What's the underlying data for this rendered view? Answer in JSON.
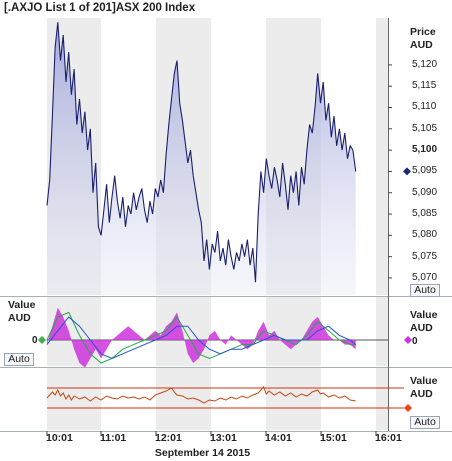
{
  "window": {
    "title": "[.AXJO List 1 of 201]ASX 200 Index"
  },
  "price_panel": {
    "axis_label_line1": "Price",
    "axis_label_line2": "AUD",
    "ticks": [
      "5,120",
      "5,115",
      "5,110",
      "5,105",
      "5,100",
      "5,095",
      "5,090",
      "5,085",
      "5,080",
      "5,075",
      "5,070"
    ],
    "current_tick": "5,100",
    "auto_label": "Auto",
    "marker_color": "#1a2a6c"
  },
  "oscillator_panel": {
    "left_label_line1": "Value",
    "left_label_line2": "AUD",
    "left_zero": "0",
    "right_label_line1": "Value",
    "right_label_line2": "AUD",
    "right_zero": "0",
    "auto_label": "Auto",
    "histogram_color": "#cc33dd",
    "line1_color": "#22aa44",
    "line2_color": "#2255cc"
  },
  "bottom_panel": {
    "label_line1": "Value",
    "label_line2": "AUD",
    "auto_label": "Auto",
    "line_color": "#cc4411",
    "band_color": "#cc3311",
    "marker_color": "#ee4411"
  },
  "x_axis": {
    "ticks": [
      "10:01",
      "11:01",
      "12:01",
      "13:01",
      "14:01",
      "15:01",
      "16:01"
    ],
    "date_label": "September 14 2015"
  },
  "chart_data": {
    "type": "line",
    "title": "[.AXJO List 1 of 201]ASX 200 Index",
    "xlabel": "September 14 2015",
    "ylabel": "Price AUD",
    "ylim": [
      5066,
      5131
    ],
    "x_range": [
      0,
      360
    ],
    "x_unit": "minutes after 10:01",
    "series": [
      {
        "name": "ASX 200 Index",
        "points": [
          [
            0,
            5087
          ],
          [
            3,
            5093
          ],
          [
            6,
            5108
          ],
          [
            9,
            5124
          ],
          [
            12,
            5130
          ],
          [
            15,
            5121
          ],
          [
            18,
            5127
          ],
          [
            21,
            5116
          ],
          [
            24,
            5123
          ],
          [
            27,
            5113
          ],
          [
            30,
            5119
          ],
          [
            33,
            5106
          ],
          [
            36,
            5112
          ],
          [
            39,
            5104
          ],
          [
            42,
            5109
          ],
          [
            45,
            5100
          ],
          [
            48,
            5105
          ],
          [
            51,
            5090
          ],
          [
            54,
            5097
          ],
          [
            57,
            5082
          ],
          [
            60,
            5080
          ],
          [
            63,
            5086
          ],
          [
            66,
            5092
          ],
          [
            69,
            5083
          ],
          [
            72,
            5089
          ],
          [
            75,
            5094
          ],
          [
            78,
            5088
          ],
          [
            81,
            5084
          ],
          [
            84,
            5089
          ],
          [
            87,
            5082
          ],
          [
            90,
            5087
          ],
          [
            93,
            5085
          ],
          [
            96,
            5090
          ],
          [
            99,
            5086
          ],
          [
            102,
            5089
          ],
          [
            105,
            5091
          ],
          [
            108,
            5086
          ],
          [
            111,
            5083
          ],
          [
            114,
            5088
          ],
          [
            117,
            5085
          ],
          [
            120,
            5091
          ],
          [
            123,
            5089
          ],
          [
            126,
            5093
          ],
          [
            129,
            5090
          ],
          [
            132,
            5099
          ],
          [
            135,
            5106
          ],
          [
            138,
            5112
          ],
          [
            141,
            5118
          ],
          [
            144,
            5121
          ],
          [
            147,
            5111
          ],
          [
            150,
            5107
          ],
          [
            153,
            5102
          ],
          [
            156,
            5097
          ],
          [
            159,
            5100
          ],
          [
            162,
            5094
          ],
          [
            165,
            5090
          ],
          [
            168,
            5086
          ],
          [
            171,
            5083
          ],
          [
            174,
            5074
          ],
          [
            177,
            5079
          ],
          [
            180,
            5072
          ],
          [
            183,
            5078
          ],
          [
            186,
            5076
          ],
          [
            189,
            5081
          ],
          [
            192,
            5074
          ],
          [
            195,
            5077
          ],
          [
            198,
            5073
          ],
          [
            201,
            5079
          ],
          [
            204,
            5075
          ],
          [
            207,
            5072
          ],
          [
            210,
            5076
          ],
          [
            213,
            5074
          ],
          [
            216,
            5078
          ],
          [
            219,
            5075
          ],
          [
            222,
            5079
          ],
          [
            225,
            5073
          ],
          [
            228,
            5077
          ],
          [
            231,
            5069
          ],
          [
            234,
            5085
          ],
          [
            237,
            5095
          ],
          [
            240,
            5090
          ],
          [
            243,
            5098
          ],
          [
            246,
            5094
          ],
          [
            249,
            5091
          ],
          [
            252,
            5096
          ],
          [
            255,
            5093
          ],
          [
            258,
            5089
          ],
          [
            261,
            5097
          ],
          [
            264,
            5092
          ],
          [
            267,
            5086
          ],
          [
            270,
            5094
          ],
          [
            273,
            5090
          ],
          [
            276,
            5095
          ],
          [
            279,
            5087
          ],
          [
            282,
            5096
          ],
          [
            285,
            5092
          ],
          [
            288,
            5100
          ],
          [
            291,
            5106
          ],
          [
            294,
            5104
          ],
          [
            297,
            5110
          ],
          [
            300,
            5118
          ],
          [
            303,
            5111
          ],
          [
            306,
            5116
          ],
          [
            309,
            5107
          ],
          [
            312,
            5111
          ],
          [
            315,
            5103
          ],
          [
            318,
            5108
          ],
          [
            321,
            5101
          ],
          [
            324,
            5105
          ],
          [
            327,
            5100
          ],
          [
            330,
            5104
          ],
          [
            333,
            5098
          ],
          [
            336,
            5101
          ],
          [
            339,
            5100
          ],
          [
            342,
            5095
          ]
        ]
      }
    ],
    "oscillator": {
      "histogram": [
        [
          0,
          -1
        ],
        [
          6,
          3
        ],
        [
          12,
          7
        ],
        [
          18,
          5
        ],
        [
          24,
          2
        ],
        [
          30,
          -2
        ],
        [
          36,
          -5
        ],
        [
          42,
          -6
        ],
        [
          48,
          -4
        ],
        [
          54,
          -2
        ],
        [
          60,
          -4
        ],
        [
          66,
          -2
        ],
        [
          72,
          0
        ],
        [
          78,
          1
        ],
        [
          84,
          2
        ],
        [
          90,
          3
        ],
        [
          96,
          2
        ],
        [
          102,
          1
        ],
        [
          108,
          0
        ],
        [
          114,
          1
        ],
        [
          120,
          2
        ],
        [
          126,
          1
        ],
        [
          132,
          3
        ],
        [
          138,
          4
        ],
        [
          144,
          6
        ],
        [
          150,
          2
        ],
        [
          156,
          -3
        ],
        [
          162,
          -5
        ],
        [
          168,
          -4
        ],
        [
          174,
          -2
        ],
        [
          180,
          1
        ],
        [
          186,
          2
        ],
        [
          192,
          0
        ],
        [
          198,
          -1
        ],
        [
          204,
          1
        ],
        [
          210,
          0
        ],
        [
          216,
          -1
        ],
        [
          222,
          -2
        ],
        [
          228,
          -1
        ],
        [
          234,
          2
        ],
        [
          240,
          4
        ],
        [
          246,
          1
        ],
        [
          252,
          2
        ],
        [
          258,
          0
        ],
        [
          264,
          -1
        ],
        [
          270,
          -2
        ],
        [
          276,
          -1
        ],
        [
          282,
          0
        ],
        [
          288,
          2
        ],
        [
          294,
          4
        ],
        [
          300,
          5
        ],
        [
          306,
          3
        ],
        [
          312,
          1
        ],
        [
          318,
          0
        ],
        [
          324,
          0
        ],
        [
          330,
          -1
        ],
        [
          336,
          -1
        ],
        [
          342,
          -2
        ]
      ],
      "line1": [
        [
          0,
          0
        ],
        [
          12,
          5
        ],
        [
          24,
          6
        ],
        [
          36,
          1
        ],
        [
          48,
          -3
        ],
        [
          60,
          -5
        ],
        [
          72,
          -4
        ],
        [
          84,
          -2
        ],
        [
          96,
          -1
        ],
        [
          108,
          0
        ],
        [
          120,
          1
        ],
        [
          132,
          2
        ],
        [
          144,
          5
        ],
        [
          156,
          1
        ],
        [
          168,
          -3
        ],
        [
          180,
          -4
        ],
        [
          192,
          -3
        ],
        [
          204,
          -2
        ],
        [
          216,
          -1
        ],
        [
          228,
          -1
        ],
        [
          240,
          2
        ],
        [
          252,
          1
        ],
        [
          264,
          0
        ],
        [
          276,
          -1
        ],
        [
          288,
          1
        ],
        [
          300,
          4
        ],
        [
          312,
          2
        ],
        [
          324,
          0
        ],
        [
          336,
          -1
        ],
        [
          342,
          -1
        ]
      ],
      "line2": [
        [
          0,
          -1
        ],
        [
          12,
          2
        ],
        [
          24,
          5
        ],
        [
          36,
          3
        ],
        [
          48,
          0
        ],
        [
          60,
          -3
        ],
        [
          72,
          -4
        ],
        [
          84,
          -3
        ],
        [
          96,
          -2
        ],
        [
          108,
          -1
        ],
        [
          120,
          0
        ],
        [
          132,
          1
        ],
        [
          144,
          3
        ],
        [
          156,
          3
        ],
        [
          168,
          0
        ],
        [
          180,
          -2
        ],
        [
          192,
          -3
        ],
        [
          204,
          -2
        ],
        [
          216,
          -2
        ],
        [
          228,
          -1
        ],
        [
          240,
          0
        ],
        [
          252,
          1
        ],
        [
          264,
          0
        ],
        [
          276,
          0
        ],
        [
          288,
          0
        ],
        [
          300,
          2
        ],
        [
          312,
          3
        ],
        [
          324,
          1
        ],
        [
          336,
          0
        ],
        [
          342,
          -1
        ]
      ]
    },
    "bottom_indicator": {
      "band_upper": 1,
      "band_lower": -1,
      "points": [
        [
          0,
          0
        ],
        [
          6,
          0.6
        ],
        [
          9,
          0.3
        ],
        [
          12,
          0.8
        ],
        [
          15,
          0.2
        ],
        [
          18,
          0.5
        ],
        [
          21,
          -0.1
        ],
        [
          24,
          0.3
        ],
        [
          27,
          -0.2
        ],
        [
          30,
          0.2
        ],
        [
          36,
          -0.1
        ],
        [
          42,
          0.1
        ],
        [
          48,
          -0.3
        ],
        [
          54,
          0.1
        ],
        [
          60,
          -0.2
        ],
        [
          66,
          0.2
        ],
        [
          72,
          0.0
        ],
        [
          78,
          -0.1
        ],
        [
          84,
          0.2
        ],
        [
          90,
          0.0
        ],
        [
          96,
          0.1
        ],
        [
          102,
          -0.1
        ],
        [
          108,
          0.1
        ],
        [
          114,
          -0.2
        ],
        [
          120,
          0.3
        ],
        [
          126,
          0.5
        ],
        [
          132,
          0.7
        ],
        [
          138,
          1.0
        ],
        [
          141,
          0.6
        ],
        [
          144,
          0.3
        ],
        [
          150,
          0.2
        ],
        [
          156,
          -0.1
        ],
        [
          162,
          0.0
        ],
        [
          168,
          -0.2
        ],
        [
          174,
          -0.5
        ],
        [
          180,
          -0.2
        ],
        [
          186,
          -0.3
        ],
        [
          192,
          0.0
        ],
        [
          198,
          -0.2
        ],
        [
          204,
          0.1
        ],
        [
          210,
          -0.1
        ],
        [
          216,
          0.2
        ],
        [
          222,
          0.0
        ],
        [
          228,
          0.3
        ],
        [
          234,
          0.5
        ],
        [
          240,
          1.1
        ],
        [
          243,
          0.4
        ],
        [
          246,
          0.7
        ],
        [
          252,
          0.3
        ],
        [
          258,
          0.6
        ],
        [
          264,
          0.2
        ],
        [
          270,
          0.5
        ],
        [
          276,
          0.1
        ],
        [
          282,
          0.4
        ],
        [
          288,
          0.2
        ],
        [
          294,
          0.6
        ],
        [
          300,
          0.8
        ],
        [
          303,
          0.4
        ],
        [
          306,
          0.5
        ],
        [
          312,
          0.1
        ],
        [
          318,
          0.3
        ],
        [
          324,
          0.0
        ],
        [
          330,
          0.2
        ],
        [
          336,
          -0.2
        ],
        [
          342,
          -0.3
        ]
      ]
    }
  }
}
